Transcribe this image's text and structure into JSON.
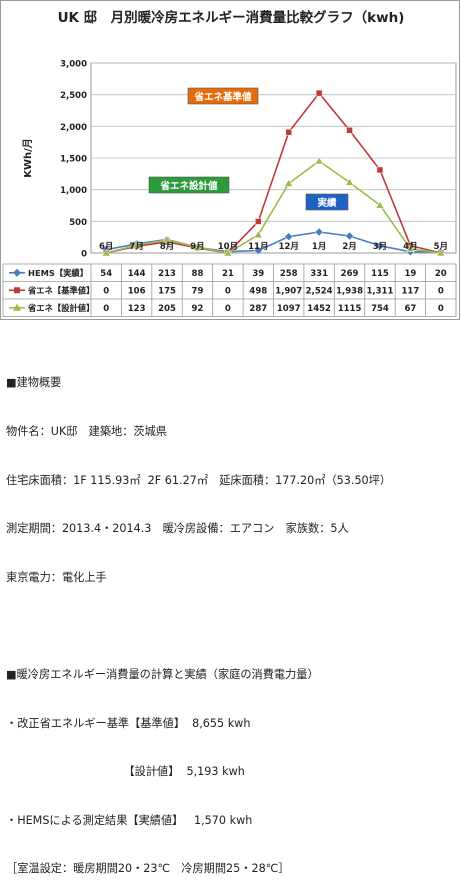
{
  "chart_data": {
    "type": "line",
    "title": "UK 邸　月別暖冷房エネルギー消費量比較グラフ（kwh)",
    "ylabel": "KWh/月",
    "ylim": [
      0,
      3000
    ],
    "yticks": [
      "0",
      "500",
      "1,000",
      "1,500",
      "2,000",
      "2,500",
      "3,000"
    ],
    "categories": [
      "6月",
      "7月",
      "8月",
      "9月",
      "10月",
      "11月",
      "12月",
      "1月",
      "2月",
      "3月",
      "4月",
      "5月"
    ],
    "series": [
      {
        "name": "HEMS【実績】",
        "color": "#4a7cc0",
        "marker": "diamond",
        "values": [
          54,
          144,
          213,
          88,
          21,
          39,
          258,
          331,
          269,
          115,
          19,
          20
        ],
        "labels": [
          "54",
          "144",
          "213",
          "88",
          "21",
          "39",
          "258",
          "331",
          "269",
          "115",
          "19",
          "20"
        ]
      },
      {
        "name": "省エネ【基準値】",
        "color": "#c0393a",
        "marker": "square",
        "values": [
          0,
          106,
          175,
          79,
          0,
          498,
          1907,
          2524,
          1938,
          1311,
          117,
          0
        ],
        "labels": [
          "0",
          "106",
          "175",
          "79",
          "0",
          "498",
          "1,907",
          "2,524",
          "1,938",
          "1,311",
          "117",
          "0"
        ]
      },
      {
        "name": "省エネ【設計値】",
        "color": "#9bbb4a",
        "marker": "triangle",
        "values": [
          0,
          123,
          205,
          92,
          0,
          287,
          1097,
          1452,
          1115,
          754,
          67,
          0
        ],
        "labels": [
          "0",
          "123",
          "205",
          "92",
          "0",
          "287",
          "1097",
          "1452",
          "1115",
          "754",
          "67",
          "0"
        ]
      }
    ],
    "annotations": [
      {
        "text": "省エネ基準値",
        "color": "#e46c0a"
      },
      {
        "text": "省エネ設計値",
        "color": "#2e9a3e"
      },
      {
        "text": "実績",
        "color": "#1f62c4"
      }
    ],
    "grid": true,
    "legend": "table-below"
  },
  "info": {
    "lines": [
      "■建物概要",
      "物件名：UK邸　建築地：茨城県",
      "住宅床面積：1F 115.93㎡  2F 61.27㎡　延床面積：177.20㎡（53.50坪）",
      "測定期間：2013.4・2014.3　暖冷房設備：エアコン　家族数：5人",
      "東京電力：電化上手",
      "",
      "■暖冷房エネルギー消費量の計算と実績（家庭の消費電力量）",
      "・改正省エネルギー基準【基準値】  8,655 kwh",
      "　　　　　　　　　　　【設計値】  5,193 kwh",
      "・HEMSによる測定結果【実績値】   1,570 kwh",
      "［室温設定：暖房期間20・23℃　冷房期間25・28℃］"
    ]
  }
}
